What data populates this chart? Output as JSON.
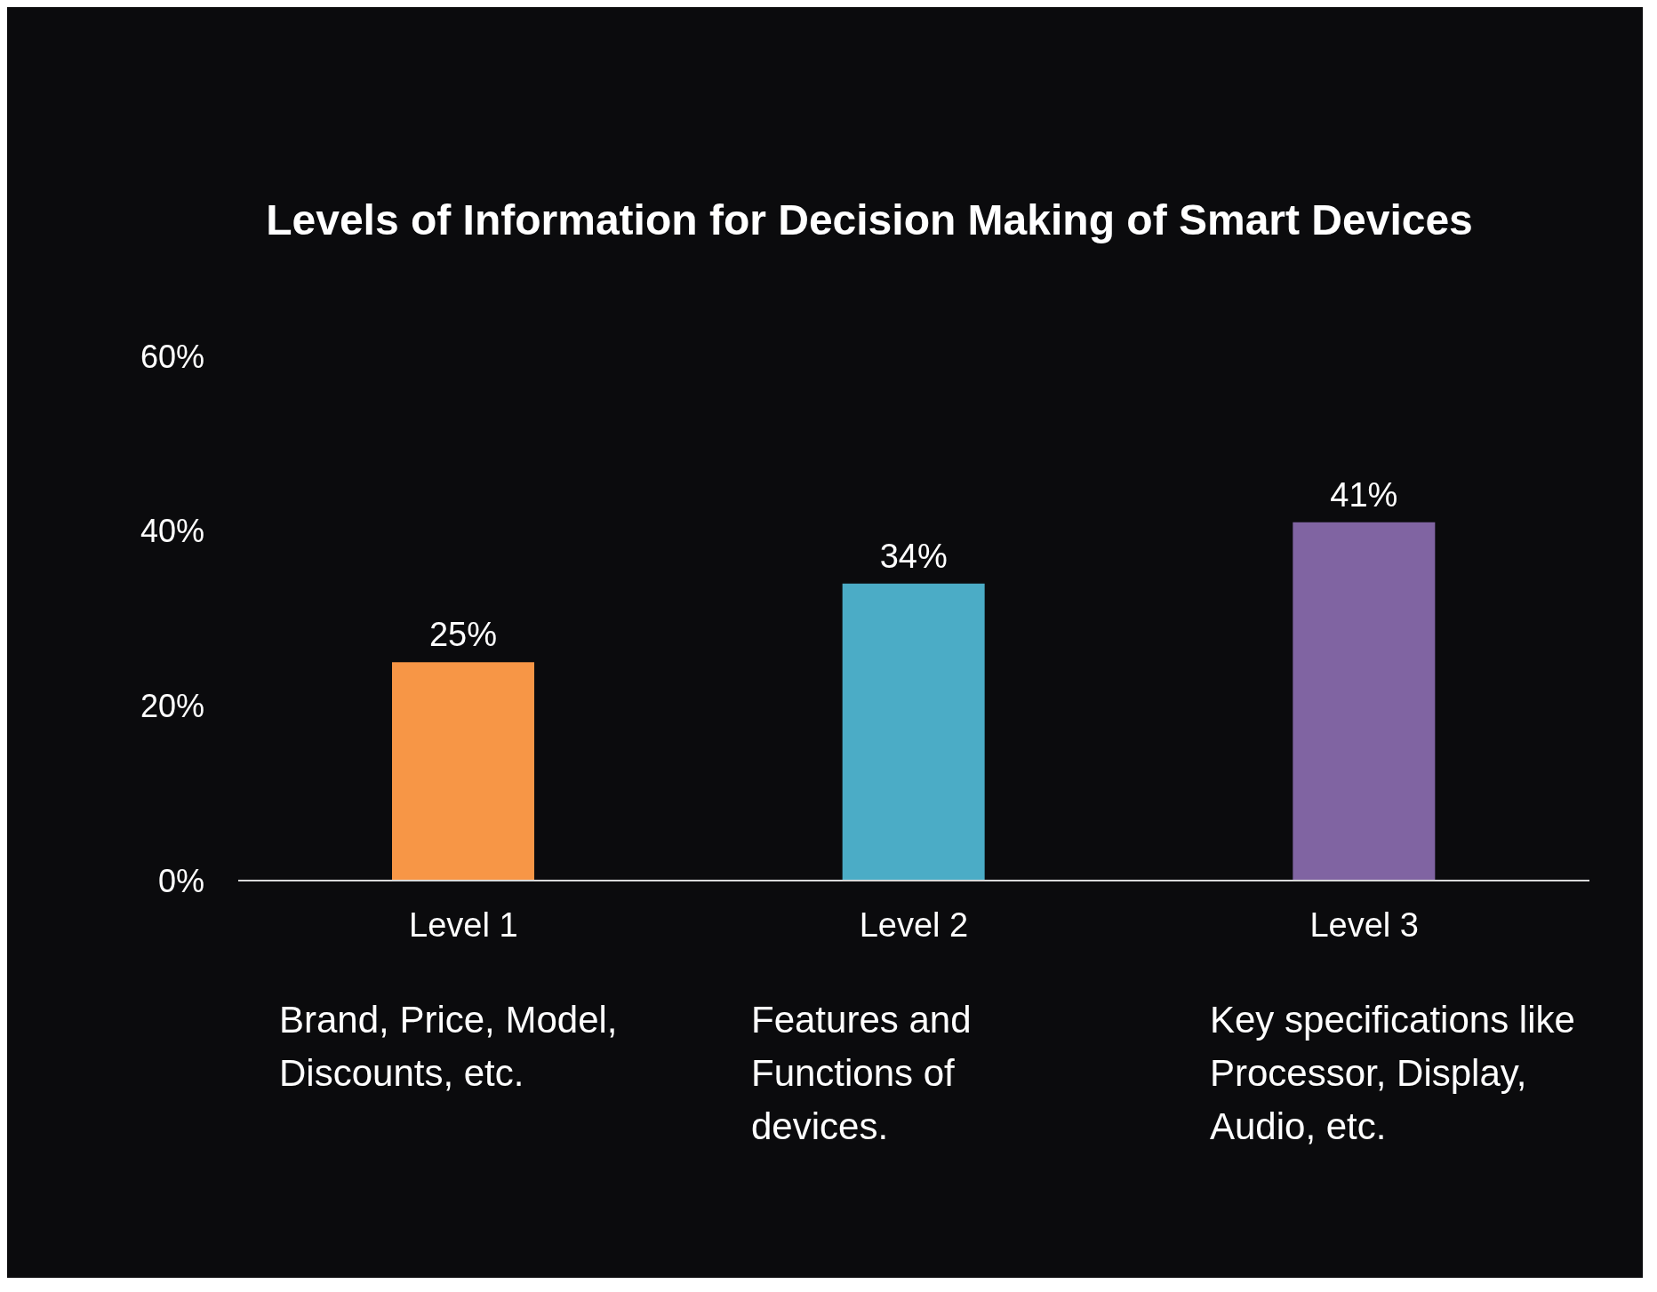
{
  "chart_data": {
    "type": "bar",
    "title": "Levels of Information for Decision Making of Smart Devices",
    "categories": [
      "Level 1",
      "Level 2",
      "Level 3"
    ],
    "values": [
      25,
      34,
      41
    ],
    "colors": [
      "#f79646",
      "#4bacc6",
      "#8064a2"
    ],
    "ylim": [
      0,
      60
    ],
    "yticks": [
      {
        "value": 0,
        "label": "0%"
      },
      {
        "value": 20,
        "label": "20%"
      },
      {
        "value": 40,
        "label": "40%"
      },
      {
        "value": 60,
        "label": "60%"
      }
    ],
    "value_labels": [
      "25%",
      "34%",
      "41%"
    ],
    "grid": false,
    "legend": false,
    "annotations": [
      "Brand, Price, Model, Discounts, etc.",
      "Features and Functions of devices.",
      "Key specifications like Processor, Display, Audio, etc."
    ]
  }
}
